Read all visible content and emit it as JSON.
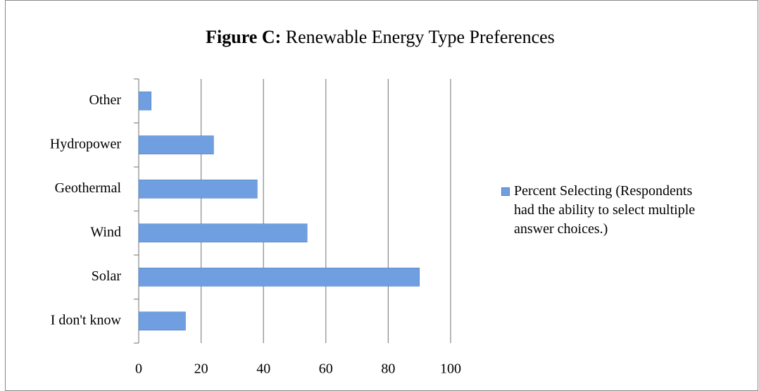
{
  "chart_data": {
    "type": "hbar",
    "title_label": "Figure C:",
    "title": "Renewable Energy Type Preferences",
    "categories": [
      "I don't know",
      "Solar",
      "Wind",
      "Geothermal",
      "Hydropower",
      "Other"
    ],
    "series": [
      {
        "name": "Percent Selecting (Respondents had the ability to select multiple answer choices.)",
        "color": "#6f9fe0",
        "values": [
          15,
          90,
          54,
          38,
          24,
          4
        ]
      }
    ],
    "xlim": [
      0,
      100
    ],
    "xticks": [
      0,
      20,
      40,
      60,
      80,
      100
    ],
    "grid": true,
    "legend": "right"
  }
}
